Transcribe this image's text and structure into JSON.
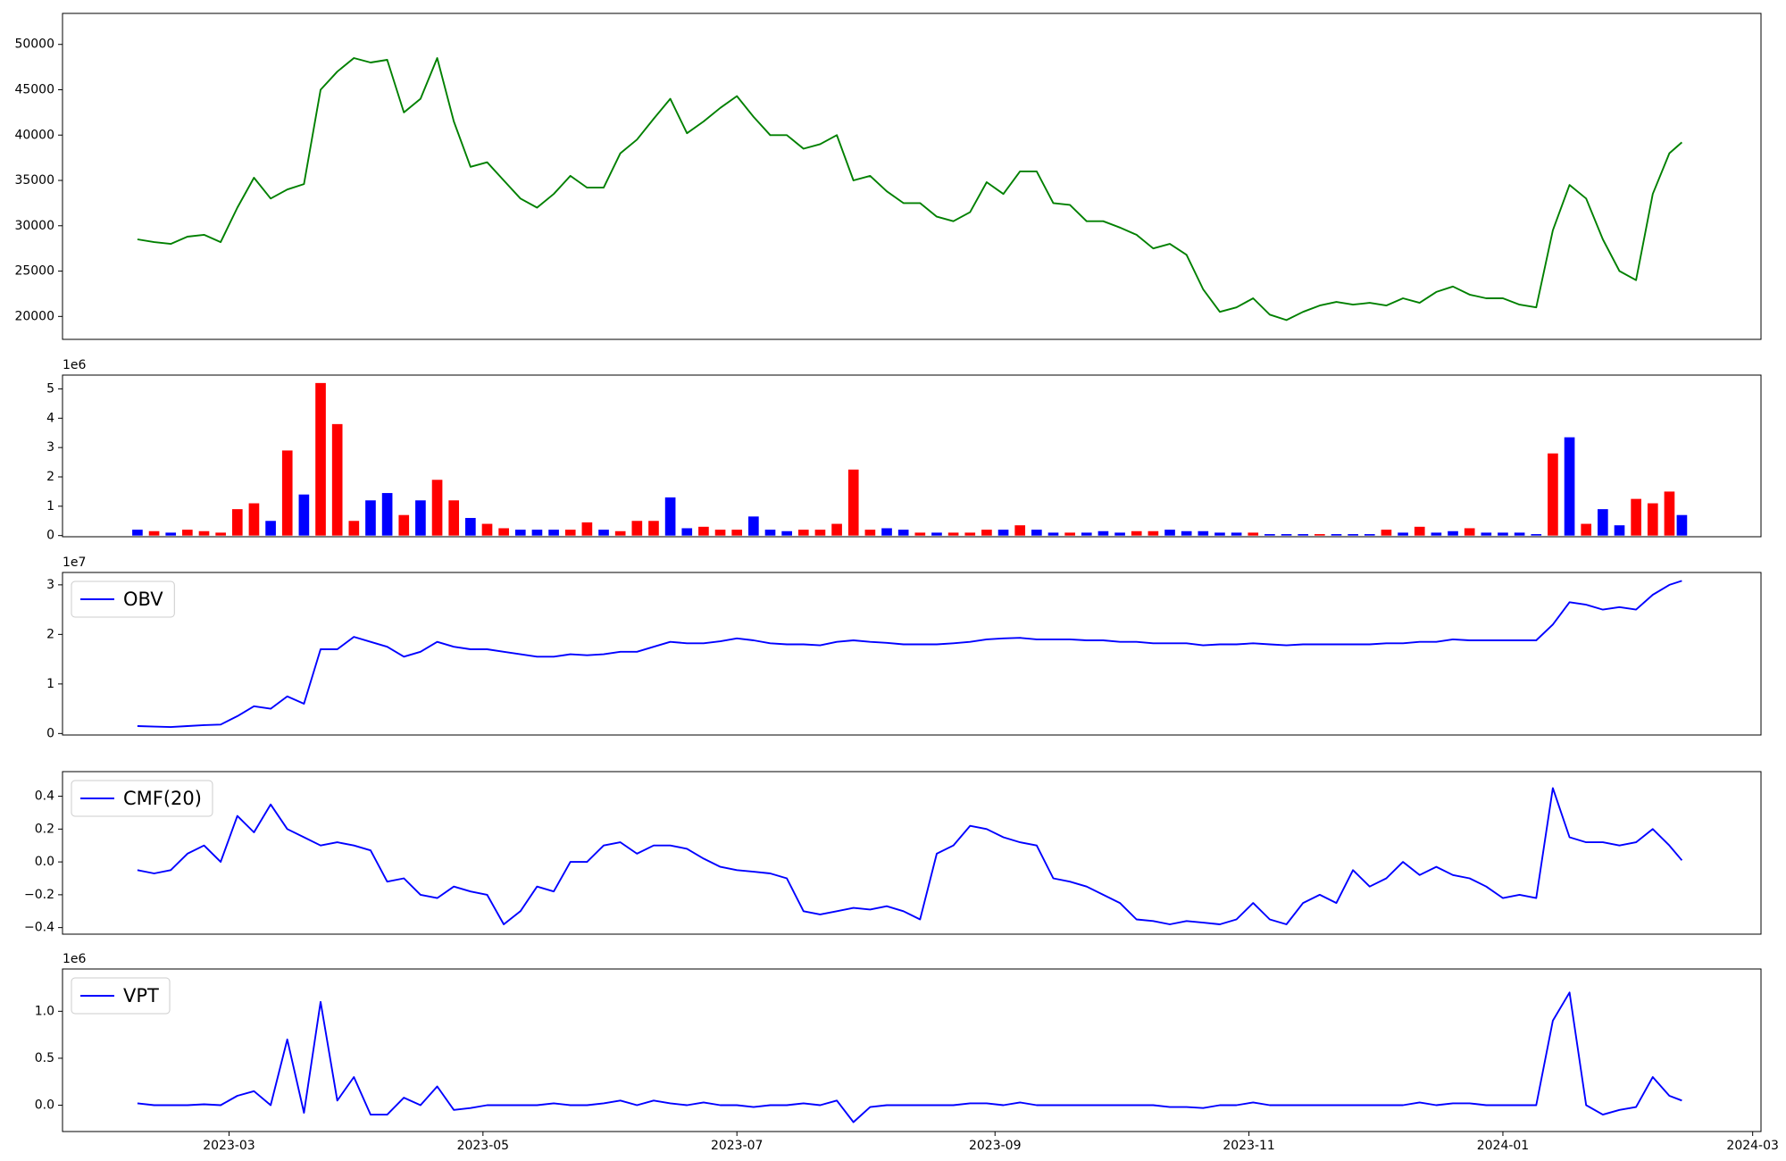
{
  "chart_data": [
    {
      "type": "line",
      "color": "green",
      "xlim": [
        -40,
        368
      ],
      "ylim": [
        17470,
        53420
      ],
      "yticks": [
        20000,
        25000,
        30000,
        35000,
        40000,
        45000,
        50000
      ],
      "x": [
        -22,
        -18,
        -14,
        -10,
        -6,
        -2,
        2,
        6,
        10,
        14,
        18,
        22,
        26,
        30,
        34,
        38,
        42,
        46,
        50,
        54,
        58,
        62,
        66,
        70,
        74,
        78,
        82,
        86,
        90,
        94,
        98,
        102,
        106,
        110,
        114,
        118,
        122,
        126,
        130,
        134,
        138,
        142,
        146,
        150,
        154,
        158,
        162,
        166,
        170,
        174,
        178,
        182,
        186,
        190,
        194,
        198,
        202,
        206,
        210,
        214,
        218,
        222,
        226,
        230,
        234,
        238,
        242,
        246,
        250,
        254,
        258,
        262,
        266,
        270,
        274,
        278,
        282,
        286,
        290,
        294,
        298,
        302,
        306,
        310,
        314,
        318,
        322,
        326,
        330,
        334,
        338,
        342,
        346,
        349
      ],
      "values": [
        28500,
        28200,
        28000,
        28800,
        29000,
        28200,
        32000,
        35300,
        33000,
        34000,
        34600,
        45000,
        47000,
        48500,
        48000,
        48300,
        42500,
        44000,
        48500,
        41500,
        36500,
        37000,
        35000,
        33000,
        32000,
        33500,
        35500,
        34200,
        34200,
        38000,
        39500,
        41800,
        44000,
        40200,
        41500,
        43000,
        44300,
        42000,
        40000,
        40000,
        38500,
        39000,
        40000,
        35000,
        35500,
        33800,
        32500,
        32500,
        31000,
        30500,
        31500,
        34800,
        33500,
        36000,
        36000,
        32500,
        32300,
        30500,
        30500,
        29800,
        29000,
        27500,
        28000,
        26800,
        23000,
        20500,
        21000,
        22000,
        20200,
        19600,
        20500,
        21200,
        21600,
        21300,
        21500,
        21200,
        22000,
        21500,
        22700,
        23300,
        22400,
        22000,
        22000,
        21300,
        21000,
        29500,
        34500,
        33000,
        28500,
        25000,
        24000,
        33500,
        38000,
        39200
      ]
    },
    {
      "type": "bar",
      "offset_label": "1e6",
      "xlim": [
        -40,
        368
      ],
      "ylim": [
        -0.04,
        5.47
      ],
      "yticks": [
        0,
        1,
        2,
        3,
        4,
        5
      ],
      "x": [
        -22,
        -18,
        -14,
        -10,
        -6,
        -2,
        2,
        6,
        10,
        14,
        18,
        22,
        26,
        30,
        34,
        38,
        42,
        46,
        50,
        54,
        58,
        62,
        66,
        70,
        74,
        78,
        82,
        86,
        90,
        94,
        98,
        102,
        106,
        110,
        114,
        118,
        122,
        126,
        130,
        134,
        138,
        142,
        146,
        150,
        154,
        158,
        162,
        166,
        170,
        174,
        178,
        182,
        186,
        190,
        194,
        198,
        202,
        206,
        210,
        214,
        218,
        222,
        226,
        230,
        234,
        238,
        242,
        246,
        250,
        254,
        258,
        262,
        266,
        270,
        274,
        278,
        282,
        286,
        290,
        294,
        298,
        302,
        306,
        310,
        314,
        318,
        322,
        326,
        330,
        334,
        338,
        342,
        346,
        349
      ],
      "values": [
        0.2,
        0.15,
        0.1,
        0.2,
        0.15,
        0.1,
        0.9,
        1.1,
        0.5,
        2.9,
        1.4,
        5.2,
        3.8,
        0.5,
        1.2,
        1.45,
        0.7,
        1.2,
        1.9,
        1.2,
        0.6,
        0.4,
        0.25,
        0.2,
        0.2,
        0.2,
        0.2,
        0.45,
        0.2,
        0.15,
        0.5,
        0.5,
        1.3,
        0.25,
        0.3,
        0.2,
        0.2,
        0.65,
        0.2,
        0.15,
        0.2,
        0.2,
        0.4,
        2.25,
        0.2,
        0.25,
        0.2,
        0.1,
        0.1,
        0.1,
        0.1,
        0.2,
        0.2,
        0.35,
        0.2,
        0.1,
        0.1,
        0.1,
        0.15,
        0.1,
        0.15,
        0.15,
        0.2,
        0.15,
        0.15,
        0.1,
        0.1,
        0.1,
        0.05,
        0.05,
        0.05,
        0.05,
        0.05,
        0.05,
        0.05,
        0.2,
        0.1,
        0.3,
        0.1,
        0.15,
        0.25,
        0.1,
        0.1,
        0.1,
        0.05,
        2.8,
        3.35,
        0.4,
        0.9,
        0.35,
        1.25,
        1.1,
        1.5,
        0.7
      ],
      "colors": [
        "blue",
        "red",
        "blue",
        "red",
        "red",
        "red",
        "red",
        "red",
        "blue",
        "red",
        "blue",
        "red",
        "red",
        "red",
        "blue",
        "blue",
        "red",
        "blue",
        "red",
        "red",
        "blue",
        "red",
        "red",
        "blue",
        "blue",
        "blue",
        "red",
        "red",
        "blue",
        "red",
        "red",
        "red",
        "blue",
        "blue",
        "red",
        "red",
        "red",
        "blue",
        "blue",
        "blue",
        "red",
        "red",
        "red",
        "red",
        "red",
        "blue",
        "blue",
        "red",
        "blue",
        "red",
        "red",
        "red",
        "blue",
        "red",
        "blue",
        "blue",
        "red",
        "blue",
        "blue",
        "blue",
        "red",
        "red",
        "blue",
        "blue",
        "blue",
        "blue",
        "blue",
        "red",
        "blue",
        "blue",
        "blue",
        "red",
        "blue",
        "blue",
        "blue",
        "red",
        "blue",
        "red",
        "blue",
        "blue",
        "red",
        "blue",
        "blue",
        "blue",
        "blue",
        "red",
        "blue",
        "red",
        "blue",
        "blue",
        "red",
        "red",
        "red",
        "blue"
      ]
    },
    {
      "type": "line",
      "offset_label": "1e7",
      "legend": "upper left",
      "xlim": [
        -40,
        368
      ],
      "ylim": [
        -0.03,
        3.25
      ],
      "yticks": [
        0,
        1,
        2,
        3
      ],
      "x": [
        -22,
        -18,
        -14,
        -10,
        -6,
        -2,
        2,
        6,
        10,
        14,
        18,
        22,
        26,
        30,
        34,
        38,
        42,
        46,
        50,
        54,
        58,
        62,
        66,
        70,
        74,
        78,
        82,
        86,
        90,
        94,
        98,
        102,
        106,
        110,
        114,
        118,
        122,
        126,
        130,
        134,
        138,
        142,
        146,
        150,
        154,
        158,
        162,
        166,
        170,
        174,
        178,
        182,
        186,
        190,
        194,
        198,
        202,
        206,
        210,
        214,
        218,
        222,
        226,
        230,
        234,
        238,
        242,
        246,
        250,
        254,
        258,
        262,
        266,
        270,
        274,
        278,
        282,
        286,
        290,
        294,
        298,
        302,
        306,
        310,
        314,
        318,
        322,
        326,
        330,
        334,
        338,
        342,
        346,
        349
      ],
      "series": [
        {
          "name": "OBV",
          "color": "blue",
          "values": [
            0.15,
            0.14,
            0.13,
            0.15,
            0.17,
            0.18,
            0.35,
            0.55,
            0.5,
            0.75,
            0.6,
            1.7,
            1.7,
            1.95,
            1.85,
            1.75,
            1.55,
            1.65,
            1.85,
            1.75,
            1.7,
            1.7,
            1.65,
            1.6,
            1.55,
            1.55,
            1.6,
            1.58,
            1.6,
            1.65,
            1.65,
            1.75,
            1.85,
            1.82,
            1.82,
            1.86,
            1.92,
            1.88,
            1.82,
            1.8,
            1.8,
            1.78,
            1.85,
            1.88,
            1.85,
            1.83,
            1.8,
            1.8,
            1.8,
            1.82,
            1.85,
            1.9,
            1.92,
            1.93,
            1.9,
            1.9,
            1.9,
            1.88,
            1.88,
            1.85,
            1.85,
            1.82,
            1.82,
            1.82,
            1.78,
            1.8,
            1.8,
            1.82,
            1.8,
            1.78,
            1.8,
            1.8,
            1.8,
            1.8,
            1.8,
            1.82,
            1.82,
            1.85,
            1.85,
            1.9,
            1.88,
            1.88,
            1.88,
            1.88,
            1.88,
            2.2,
            2.65,
            2.6,
            2.5,
            2.55,
            2.5,
            2.8,
            3.0,
            3.08
          ]
        }
      ]
    },
    {
      "type": "line",
      "legend": "upper left",
      "xlim": [
        -40,
        368
      ],
      "ylim": [
        -0.44,
        0.55
      ],
      "yticks": [
        {
          "value": -0.4,
          "label": "−0.4"
        },
        {
          "value": -0.2,
          "label": "−0.2"
        },
        {
          "value": 0,
          "label": "0.0"
        },
        0.2,
        0.4
      ],
      "x": [
        -22,
        -18,
        -14,
        -10,
        -6,
        -2,
        2,
        6,
        10,
        14,
        18,
        22,
        26,
        30,
        34,
        38,
        42,
        46,
        50,
        54,
        58,
        62,
        66,
        70,
        74,
        78,
        82,
        86,
        90,
        94,
        98,
        102,
        106,
        110,
        114,
        118,
        122,
        126,
        130,
        134,
        138,
        142,
        146,
        150,
        154,
        158,
        162,
        166,
        170,
        174,
        178,
        182,
        186,
        190,
        194,
        198,
        202,
        206,
        210,
        214,
        218,
        222,
        226,
        230,
        234,
        238,
        242,
        246,
        250,
        254,
        258,
        262,
        266,
        270,
        274,
        278,
        282,
        286,
        290,
        294,
        298,
        302,
        306,
        310,
        314,
        318,
        322,
        326,
        330,
        334,
        338,
        342,
        346,
        349
      ],
      "series": [
        {
          "name": "CMF(20)",
          "color": "blue",
          "values": [
            -0.05,
            -0.07,
            -0.05,
            0.05,
            0.1,
            0.0,
            0.28,
            0.18,
            0.35,
            0.2,
            0.15,
            0.1,
            0.12,
            0.1,
            0.07,
            -0.12,
            -0.1,
            -0.2,
            -0.22,
            -0.15,
            -0.18,
            -0.2,
            -0.38,
            -0.3,
            -0.15,
            -0.18,
            0.0,
            0.0,
            0.1,
            0.12,
            0.05,
            0.1,
            0.1,
            0.08,
            0.02,
            -0.03,
            -0.05,
            -0.06,
            -0.07,
            -0.1,
            -0.3,
            -0.32,
            -0.3,
            -0.28,
            -0.29,
            -0.27,
            -0.3,
            -0.35,
            0.05,
            0.1,
            0.22,
            0.2,
            0.15,
            0.12,
            0.1,
            -0.1,
            -0.12,
            -0.15,
            -0.2,
            -0.25,
            -0.35,
            -0.36,
            -0.38,
            -0.36,
            -0.37,
            -0.38,
            -0.35,
            -0.25,
            -0.35,
            -0.38,
            -0.25,
            -0.2,
            -0.25,
            -0.05,
            -0.15,
            -0.1,
            0.0,
            -0.08,
            -0.03,
            -0.08,
            -0.1,
            -0.15,
            -0.22,
            -0.2,
            -0.22,
            0.45,
            0.15,
            0.12,
            0.12,
            0.1,
            0.12,
            0.2,
            0.1,
            0.01
          ]
        }
      ]
    },
    {
      "type": "line",
      "offset_label": "1e6",
      "legend": "upper left",
      "xlim": [
        -40,
        368
      ],
      "ylim": [
        -0.28,
        1.45
      ],
      "yticks": [
        {
          "value": 0,
          "label": "0.0"
        },
        0.5,
        {
          "value": 1,
          "label": "1.0"
        }
      ],
      "xticks": [
        {
          "value": 0,
          "label": "2023-03"
        },
        {
          "value": 61,
          "label": "2023-05"
        },
        {
          "value": 122,
          "label": "2023-07"
        },
        {
          "value": 184,
          "label": "2023-09"
        },
        {
          "value": 245,
          "label": "2023-11"
        },
        {
          "value": 306,
          "label": "2024-01"
        },
        {
          "value": 366,
          "label": "2024-03"
        }
      ],
      "x": [
        -22,
        -18,
        -14,
        -10,
        -6,
        -2,
        2,
        6,
        10,
        14,
        18,
        22,
        26,
        30,
        34,
        38,
        42,
        46,
        50,
        54,
        58,
        62,
        66,
        70,
        74,
        78,
        82,
        86,
        90,
        94,
        98,
        102,
        106,
        110,
        114,
        118,
        122,
        126,
        130,
        134,
        138,
        142,
        146,
        150,
        154,
        158,
        162,
        166,
        170,
        174,
        178,
        182,
        186,
        190,
        194,
        198,
        202,
        206,
        210,
        214,
        218,
        222,
        226,
        230,
        234,
        238,
        242,
        246,
        250,
        254,
        258,
        262,
        266,
        270,
        274,
        278,
        282,
        286,
        290,
        294,
        298,
        302,
        306,
        310,
        314,
        318,
        322,
        326,
        330,
        334,
        338,
        342,
        346,
        349
      ],
      "series": [
        {
          "name": "VPT",
          "color": "blue",
          "values": [
            0.02,
            0,
            0,
            0,
            0.01,
            0,
            0.1,
            0.15,
            0,
            0.7,
            -0.08,
            1.1,
            0.05,
            0.3,
            -0.1,
            -0.1,
            0.08,
            0,
            0.2,
            -0.05,
            -0.03,
            0,
            0,
            0,
            0,
            0.02,
            0,
            0,
            0.02,
            0.05,
            0,
            0.05,
            0.02,
            0,
            0.03,
            0,
            0,
            -0.02,
            0,
            0,
            0.02,
            0,
            0.05,
            -0.18,
            -0.02,
            0,
            0,
            0,
            0,
            0,
            0.02,
            0.02,
            0,
            0.03,
            0,
            0,
            0,
            0,
            0,
            0,
            0,
            0,
            -0.02,
            -0.02,
            -0.03,
            0,
            0,
            0.03,
            0,
            0,
            0,
            0,
            0,
            0,
            0,
            0,
            0,
            0.03,
            0,
            0.02,
            0.02,
            0,
            0,
            0,
            0,
            0.9,
            1.2,
            0,
            -0.1,
            -0.05,
            -0.02,
            0.3,
            0.1,
            0.05
          ]
        }
      ]
    }
  ]
}
